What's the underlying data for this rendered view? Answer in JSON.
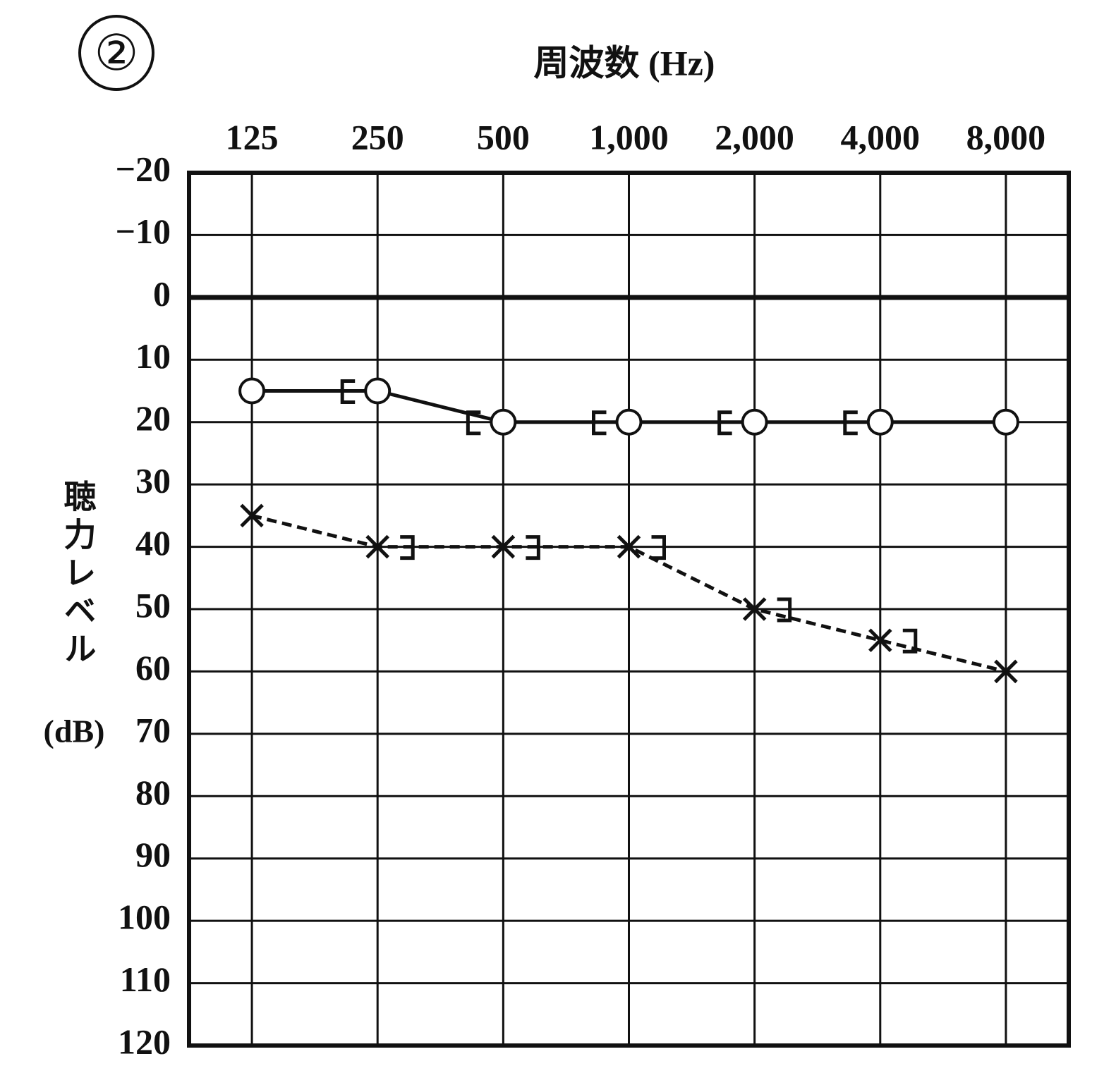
{
  "chart_data": {
    "type": "audiogram",
    "panel_label": "②",
    "xlabel": "周波数 (Hz)",
    "ylabel": "聴力レベル",
    "ylabel_unit": "(dB)",
    "categories": [
      "125",
      "250",
      "500",
      "1,000",
      "2,000",
      "4,000",
      "8,000"
    ],
    "ylim": [
      -20,
      120
    ],
    "y_inverted": true,
    "yticks": [
      {
        "value": -20,
        "label": "−20"
      },
      {
        "value": -10,
        "label": "−10"
      },
      0,
      10,
      20,
      30,
      40,
      50,
      60,
      70,
      80,
      90,
      100,
      110,
      120
    ],
    "grid": true,
    "reference_line": 0,
    "series": [
      {
        "marker": "circle",
        "line": "solid",
        "color": "#111111",
        "values": [
          15,
          15,
          20,
          20,
          20,
          20,
          20
        ]
      },
      {
        "marker": "bracket-left",
        "line": "none",
        "color": "#111111",
        "values": [
          null,
          15,
          20,
          20,
          20,
          20,
          null
        ]
      },
      {
        "marker": "cross",
        "line": "dashed",
        "color": "#111111",
        "values": [
          35,
          40,
          40,
          40,
          50,
          55,
          60
        ]
      },
      {
        "marker": "bracket-right",
        "line": "none",
        "color": "#111111",
        "values": [
          null,
          40,
          40,
          40,
          50,
          55,
          null
        ]
      }
    ]
  }
}
